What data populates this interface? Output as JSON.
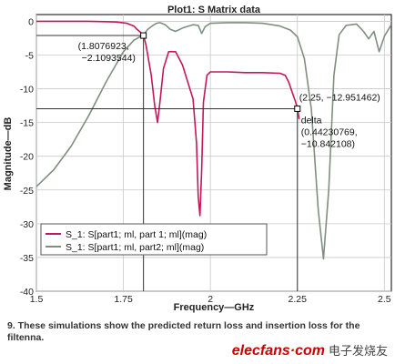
{
  "chart_data": {
    "type": "line",
    "title": "Plot1: S Matrix data",
    "xlabel": "Frequency—GHz",
    "ylabel": "Magnitude—dB",
    "xlim": [
      1.5,
      2.52
    ],
    "ylim": [
      -40,
      1
    ],
    "xticks": [
      1.5,
      1.75,
      2,
      2.25,
      2.5
    ],
    "xtick_labels": [
      "1.5",
      "1.75",
      "2",
      "2.25",
      "2.5"
    ],
    "yticks": [
      0,
      -5,
      -10,
      -15,
      -20,
      -25,
      -30,
      -35,
      -40
    ],
    "ytick_labels": [
      "0",
      "-5",
      "-10",
      "-15",
      "-20",
      "-25",
      "-30",
      "-35",
      "-40"
    ],
    "grid": true,
    "legend_position": "lower-left",
    "series": [
      {
        "name": "S_1: S[part1; ml, part 1; ml](mag)",
        "color": "#c2185b",
        "x": [
          1.5,
          1.55,
          1.6,
          1.65,
          1.7,
          1.73,
          1.76,
          1.78,
          1.7875,
          1.7987,
          1.8077,
          1.815,
          1.83,
          1.84,
          1.848,
          1.855,
          1.865,
          1.88,
          1.9,
          1.92,
          1.935,
          1.95,
          1.96,
          1.965,
          1.97,
          1.975,
          1.98,
          1.99,
          2.0,
          2.05,
          2.1,
          2.15,
          2.2,
          2.215,
          2.225,
          2.235,
          2.245,
          2.25,
          2.255
        ],
        "values": [
          0,
          0,
          0,
          0,
          -0.05,
          -0.1,
          -0.3,
          -0.7,
          -1.1,
          -1.6,
          -2.1093544,
          -3.5,
          -8.0,
          -12.5,
          -15.0,
          -12.0,
          -7.0,
          -4.5,
          -4.5,
          -6.5,
          -9.0,
          -11.5,
          -18.0,
          -26.0,
          -28.8,
          -22.0,
          -12.0,
          -8.0,
          -7.5,
          -7.5,
          -7.6,
          -7.6,
          -7.7,
          -8.0,
          -9.0,
          -10.5,
          -12.0,
          -12.951462,
          -14.5
        ]
      },
      {
        "name": "S_1: S[part1; ml, part2; ml](mag)",
        "color": "#7f8f7f",
        "x": [
          1.5,
          1.55,
          1.6,
          1.65,
          1.7,
          1.75,
          1.78,
          1.8077,
          1.82,
          1.835,
          1.845,
          1.855,
          1.87,
          1.885,
          1.9,
          1.92,
          1.95,
          1.965,
          1.975,
          1.985,
          2.0,
          2.05,
          2.1,
          2.15,
          2.2,
          2.23,
          2.25,
          2.27,
          2.29,
          2.31,
          2.325,
          2.34,
          2.355,
          2.37,
          2.39,
          2.42,
          2.44,
          2.455,
          2.47,
          2.485,
          2.5,
          2.52
        ],
        "values": [
          -24.5,
          -22.0,
          -18.5,
          -14.0,
          -9.0,
          -4.5,
          -2.8,
          -2.0,
          -1.2,
          -0.6,
          -0.3,
          -0.2,
          -0.5,
          -1.2,
          -1.5,
          -1.0,
          -0.5,
          -0.6,
          -1.8,
          -0.8,
          -0.3,
          -0.2,
          -0.2,
          -0.3,
          -0.7,
          -1.3,
          -2.3,
          -5.5,
          -13.0,
          -28.0,
          -35.2,
          -25.0,
          -8.0,
          -2.0,
          -0.6,
          -0.4,
          -1.5,
          -2.6,
          -1.5,
          -4.5,
          -2.2,
          -0.5
        ]
      }
    ],
    "markers": [
      {
        "x": 1.8076923,
        "y": -2.1093544,
        "label_line1": "(1.8076923,",
        "label_line2": "−2.1093544)"
      },
      {
        "x": 2.25,
        "y": -12.951462,
        "label_line1": "(2.25, −12.951462)"
      }
    ],
    "delta": {
      "label": "delta",
      "line1": "(0.44230769,",
      "line2": "−10.842108)"
    }
  },
  "caption": "9. These simulations show the predicted return loss and insertion loss for the filtenna.",
  "watermark": {
    "brand": "elecfans·com",
    "chinese": "电子发烧友"
  },
  "colors": {
    "grid": "#c8c8c8",
    "plot_border": "#000000",
    "marker_line": "#333333"
  }
}
